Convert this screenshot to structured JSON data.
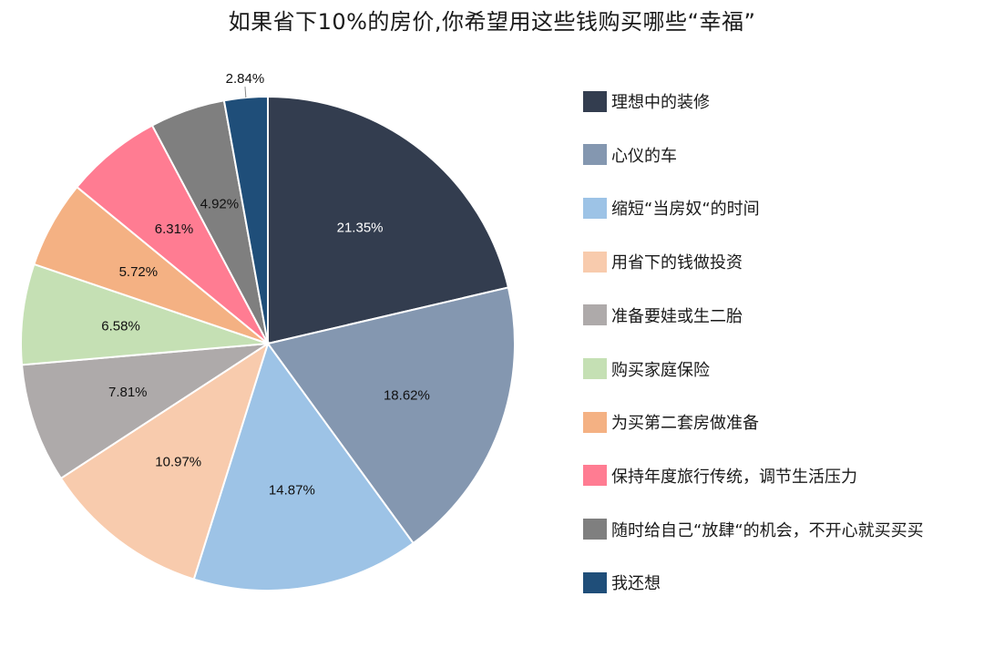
{
  "chart_data": {
    "type": "pie",
    "title": "如果省下10%的房价,你希望用这些钱购买哪些“幸福”",
    "legend_position": "right",
    "start_angle": "12 o'clock, clockwise",
    "categories": [
      "理想中的装修",
      "心仪的车",
      "缩短“当房奴“的时间",
      "用省下的钱做投资",
      "准备要娃或生二胎",
      "购买家庭保险",
      "为买第二套房做准备",
      "保持年度旅行传统，调节生活压力",
      "随时给自己“放肆“的机会，不开心就买买买",
      "我还想"
    ],
    "values": [
      21.35,
      18.62,
      14.87,
      10.97,
      7.81,
      6.58,
      5.72,
      6.31,
      4.92,
      2.84
    ],
    "labels": [
      "21.35%",
      "18.62%",
      "14.87%",
      "10.97%",
      "7.81%",
      "6.58%",
      "5.72%",
      "6.31%",
      "4.92%",
      "2.84%"
    ],
    "colors": [
      "#333d4f",
      "#8497b0",
      "#9dc3e6",
      "#f8cbad",
      "#aeaaaa",
      "#c5e0b4",
      "#f4b183",
      "#ff7c92",
      "#7f7f7f",
      "#1f4e79"
    ],
    "label_colors": [
      "#ffffff",
      "#111111",
      "#111111",
      "#111111",
      "#111111",
      "#111111",
      "#111111",
      "#111111",
      "#111111",
      "#111111"
    ],
    "units": "%"
  }
}
